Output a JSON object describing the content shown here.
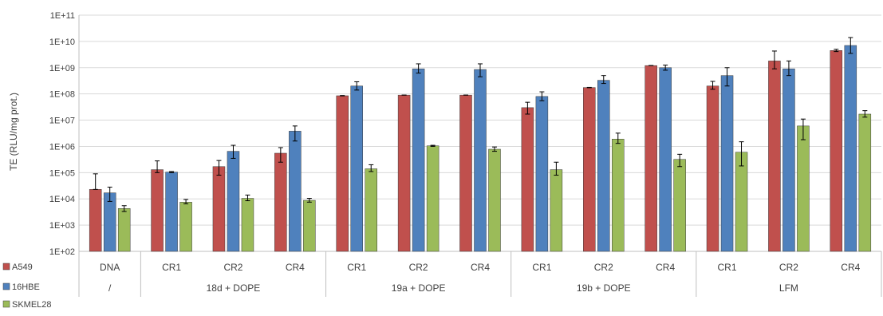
{
  "chart_data": {
    "type": "bar",
    "y_scale": "log",
    "ylabel": "TE (RLU/mg prot.)",
    "ylim": [
      100,
      100000000000
    ],
    "yticks": [
      "1E+02",
      "1E+03",
      "1E+04",
      "1E+05",
      "1E+06",
      "1E+07",
      "1E+08",
      "1E+09",
      "1E+10",
      "1E+11"
    ],
    "grid": true,
    "legend_position": "bottom-left",
    "categories": [
      "DNA",
      "CR1",
      "CR2",
      "CR4",
      "CR1",
      "CR2",
      "CR4",
      "CR1",
      "CR2",
      "CR4",
      "CR1",
      "CR2",
      "CR4"
    ],
    "groups": [
      {
        "label": "/",
        "span": [
          0,
          0
        ]
      },
      {
        "label": "18d + DOPE",
        "span": [
          1,
          3
        ]
      },
      {
        "label": "19a + DOPE",
        "span": [
          4,
          6
        ]
      },
      {
        "label": "19b + DOPE",
        "span": [
          7,
          9
        ]
      },
      {
        "label": "LFM",
        "span": [
          10,
          12
        ]
      }
    ],
    "series": [
      {
        "name": "A549",
        "color": "#c0504d",
        "values": [
          23000,
          130000,
          170000,
          550000,
          85000000,
          90000000,
          90000000,
          30000000,
          175000000,
          1200000000,
          200000000,
          1800000000,
          4500000000
        ],
        "err_high": [
          90000,
          280000,
          290000,
          900000,
          87000000,
          90000000,
          90000000,
          48000000,
          178000000,
          1200000000,
          300000000,
          4300000000,
          5000000000
        ],
        "err_low": [
          23000,
          100000,
          80000,
          250000,
          84000000,
          90000000,
          90000000,
          17000000,
          172000000,
          1200000000,
          150000000,
          900000000,
          4100000000
        ]
      },
      {
        "name": "16HBE",
        "color": "#4f81bd",
        "values": [
          17000,
          105000,
          650000,
          3800000,
          200000000,
          900000000,
          850000000,
          80000000,
          330000000,
          1000000000,
          500000000,
          900000000,
          7000000000
        ],
        "err_high": [
          28000,
          110000,
          1100000,
          6000000,
          290000000,
          1400000000,
          1400000000,
          120000000,
          500000000,
          1250000000,
          1000000000,
          1800000000,
          14000000000
        ],
        "err_low": [
          8000,
          100000,
          350000,
          1600000,
          140000000,
          620000000,
          450000000,
          55000000,
          250000000,
          800000000,
          200000000,
          500000000,
          3500000000
        ]
      },
      {
        "name": "SKMEL28",
        "color": "#9bbb59",
        "values": [
          4300,
          7500,
          10500,
          8800,
          140000,
          1050000,
          780000,
          130000,
          1900000,
          320000,
          600000,
          6000000,
          17000000
        ],
        "err_high": [
          5500,
          9500,
          14000,
          10500,
          200000,
          1100000,
          950000,
          250000,
          3200000,
          500000,
          1500000,
          11000000,
          23000000
        ],
        "err_low": [
          3300,
          6500,
          8500,
          7500,
          110000,
          1000000,
          650000,
          80000,
          1300000,
          170000,
          180000,
          1800000,
          13000000
        ]
      }
    ]
  }
}
